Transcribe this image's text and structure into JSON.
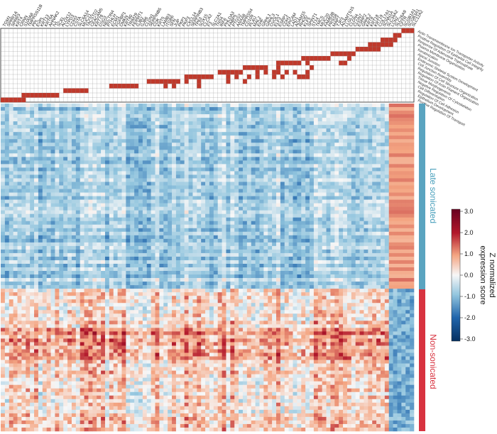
{
  "chart_data": {
    "type": "heatmap",
    "title": "",
    "annotation_matrix": {
      "description_rows": [
        "Actin Transmembrane Ion Transporter Activity",
        "Positive Regulation Of Epithelial Cell Integrity",
        "Response Of Adenosine Triphosphate",
        "Plasma Membrane Organization",
        "Keratinization",
        "Apical Junction",
        "Embryonic Skeletal System Development",
        "Cell Junction Assembly",
        "Regulation Of Cell Structure Organization",
        "Regulation Of Actin Filament Organization",
        "Tissue Morphogenesis",
        "Negative Regulation Of Cytoskeleton",
        "Cell Differentiation",
        "Regulation Of Cell Adhesion",
        "Epithelium Development",
        "Positive Regulation Of Transport"
      ],
      "n_genes": 99,
      "filled_color": "#c0392b"
    },
    "gene_labels": [
      "TGM1",
      "SPRR1A",
      "SPRR3",
      "KRT4",
      "CRNN",
      "S100A8",
      "TMPRSS11B",
      "PPL",
      "EVPL",
      "KRT13",
      "KRT6A",
      "AHNAK2",
      "IVL",
      "SCEL",
      "ALOX12",
      "LYPD3",
      "CDH3",
      "CSTA",
      "SLC6A14",
      "MUC21",
      "TACSTD2",
      "CEACAM5",
      "KRT78",
      "DSG3",
      "NECTIN4",
      "PTHLH",
      "ECM1",
      "FGFBP1",
      "DMKN",
      "KRT80",
      "TRIM29",
      "FERMT1",
      "GJB2",
      "GJB6",
      "CLDN1",
      "SERPINB5",
      "CDK",
      "KRT5",
      "LAMB3",
      "ITGB6",
      "SFN",
      "JUP",
      "PKP1",
      "PKP3",
      "CXCL14",
      "SERPINB3",
      "TP63",
      "SOX15",
      "CLCA2",
      "F3",
      "SLC2A1",
      "TNS4",
      "IRF6",
      "PHLDA3",
      "FABP5",
      "PTGS2",
      "ANXA8",
      "TMPRSS4",
      "CD109",
      "PLAU",
      "MAL2",
      "EHF",
      "GRHL1",
      "GRHL3",
      "OVOL1",
      "ELF3",
      "ESRP1",
      "CDH1",
      "EPCAM",
      "LAD1",
      "ADAM15",
      "RHOD",
      "KLF5",
      "SPINT1",
      "ST14",
      "TMC5",
      "MUC20",
      "FAM83B",
      "PRSS8",
      "MAP7",
      "TJP3",
      "ADAMTS15",
      "LLGL2",
      "CLDN4",
      "CLDN7",
      "ESRP2",
      "GRHL2",
      "KRT8",
      "KRT18",
      "KRT19",
      "COL17A1",
      "SCNN1A",
      "SLC34A2",
      "LCN2",
      "SLC26A9",
      "CFTR",
      "SCGB1A1",
      "SCGB3A1",
      "SLC12A2"
    ],
    "row_groups": [
      {
        "label": "Late sonicated",
        "color": "#5aa4c0"
      },
      {
        "label": "Non-sonicated",
        "color": "#d83340"
      }
    ],
    "colorbar": {
      "title_line1": "Z normalized",
      "title_line2": "expression score",
      "ticks": [
        "3.0",
        "2.0",
        "1.0",
        "0.0",
        "-1.0",
        "-2.0",
        "-3.0"
      ],
      "range": [
        -3.0,
        3.0
      ],
      "colors": [
        "#053061",
        "#4393c3",
        "#d1e5f0",
        "#f7f7f7",
        "#fddbc7",
        "#d6604d",
        "#67001f"
      ]
    }
  }
}
